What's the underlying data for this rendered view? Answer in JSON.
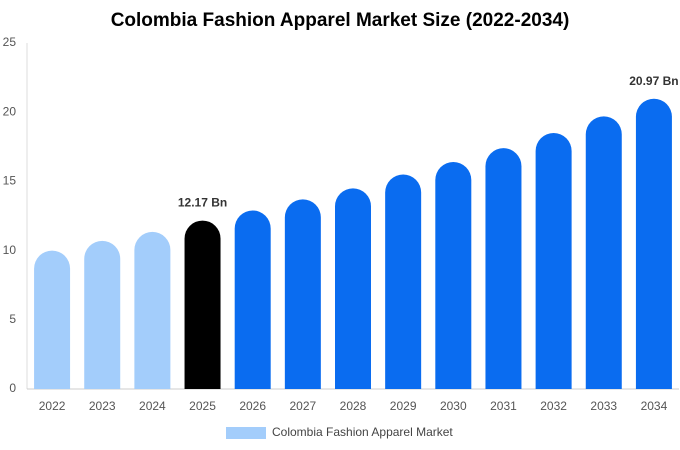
{
  "chart_data": {
    "type": "bar",
    "title": "Colombia Fashion Apparel Market Size (2022-2034)",
    "categories": [
      "2022",
      "2023",
      "2024",
      "2025",
      "2026",
      "2027",
      "2028",
      "2029",
      "2030",
      "2031",
      "2032",
      "2033",
      "2034"
    ],
    "series": [
      {
        "name": "Colombia Fashion Apparel Market",
        "color": "#a3cdfb",
        "values": [
          10.0,
          10.7,
          11.35,
          12.17,
          12.9,
          13.7,
          14.5,
          15.5,
          16.4,
          17.4,
          18.5,
          19.7,
          20.97
        ],
        "value_labels": [
          null,
          null,
          null,
          "12.17 Bn",
          null,
          null,
          null,
          null,
          null,
          null,
          null,
          null,
          "20.97 Bn"
        ],
        "colors": [
          "#a3cdfb",
          "#a3cdfb",
          "#a3cdfb",
          "#000000",
          "#0a6cf0",
          "#0a6cf0",
          "#0a6cf0",
          "#0a6cf0",
          "#0a6cf0",
          "#0a6cf0",
          "#0a6cf0",
          "#0a6cf0",
          "#0a6cf0"
        ]
      }
    ],
    "ylim": [
      0,
      25
    ],
    "yticks": [
      0,
      5,
      10,
      15,
      20,
      25
    ],
    "grid": false,
    "legend": "bottom"
  }
}
